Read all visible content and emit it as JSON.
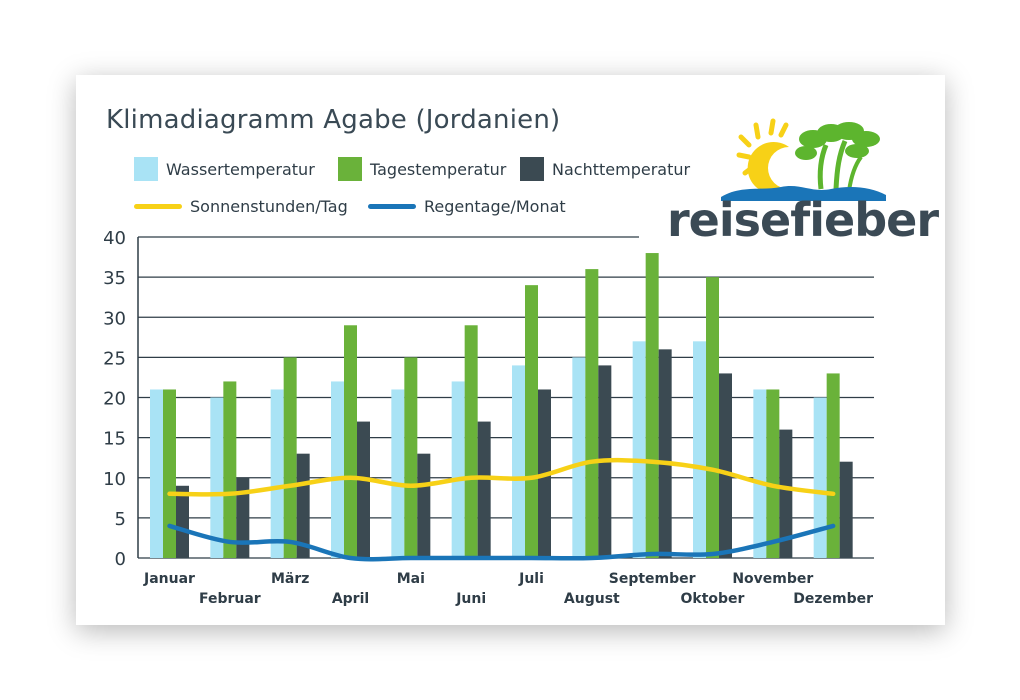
{
  "chart_data": {
    "type": "bar",
    "title": "Klimadiagramm Agabe (Jordanien)",
    "categories": [
      "Januar",
      "Februar",
      "März",
      "April",
      "Mai",
      "Juni",
      "Juli",
      "August",
      "September",
      "Oktober",
      "November",
      "Dezember"
    ],
    "series": [
      {
        "name": "Wassertemperatur",
        "color": "#a9e3f5",
        "values": [
          21,
          20,
          21,
          22,
          21,
          22,
          24,
          25,
          27,
          27,
          21,
          20
        ]
      },
      {
        "name": "Tagestemperatur",
        "color": "#6ab23a",
        "values": [
          21,
          22,
          25,
          29,
          25,
          29,
          34,
          36,
          38,
          35,
          21,
          23
        ]
      },
      {
        "name": "Nachttemperatur",
        "color": "#3b4a52",
        "values": [
          9,
          10,
          13,
          17,
          13,
          17,
          21,
          24,
          26,
          23,
          16,
          12
        ]
      }
    ],
    "lines": [
      {
        "name": "Sonnenstunden/Tag",
        "color": "#f7d117",
        "values": [
          8,
          8,
          9,
          10,
          9,
          10,
          10,
          12,
          12,
          11,
          9,
          8
        ]
      },
      {
        "name": "Regentage/Monat",
        "color": "#1a75b8",
        "values": [
          4,
          2,
          2,
          0,
          0,
          0,
          0,
          0,
          0.5,
          0.5,
          2,
          4
        ]
      }
    ],
    "yticks": [
      "0",
      "5",
      "10",
      "15",
      "20",
      "25",
      "30",
      "35",
      "40"
    ],
    "ylim": [
      0,
      40
    ],
    "xlabel": "",
    "ylabel": ""
  },
  "logo": {
    "text": "reisefieber",
    "sun_color": "#f7d117",
    "palm_color": "#5db52e",
    "wave_color": "#1a75b8"
  }
}
